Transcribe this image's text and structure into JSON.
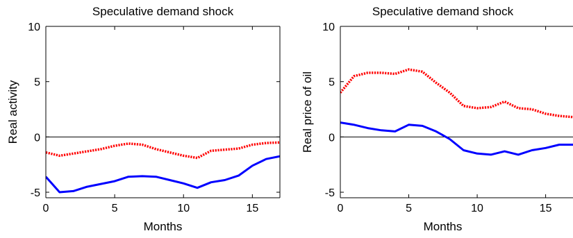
{
  "chart_data": [
    {
      "type": "line",
      "title": "Speculative demand shock",
      "xlabel": "Months",
      "ylabel": "Real activity",
      "xlim": [
        0,
        17
      ],
      "ylim": [
        -5.5,
        10
      ],
      "xticks": [
        0,
        5,
        10,
        15
      ],
      "yticks": [
        -5,
        0,
        5,
        10
      ],
      "zero_line": true,
      "series": [
        {
          "style": "solid",
          "color": "#0000ff",
          "x": [
            0,
            1,
            2,
            3,
            4,
            5,
            6,
            7,
            8,
            9,
            10,
            11,
            12,
            13,
            14,
            15,
            16,
            17
          ],
          "y": [
            -3.6,
            -5.0,
            -4.9,
            -4.5,
            -4.25,
            -4.0,
            -3.6,
            -3.55,
            -3.6,
            -3.9,
            -4.2,
            -4.6,
            -4.1,
            -3.9,
            -3.5,
            -2.6,
            -2.0,
            -1.75
          ]
        },
        {
          "style": "dotted",
          "color": "#ff0000",
          "x": [
            0,
            1,
            2,
            3,
            4,
            5,
            6,
            7,
            8,
            9,
            10,
            11,
            12,
            13,
            14,
            15,
            16,
            17
          ],
          "y": [
            -1.4,
            -1.7,
            -1.5,
            -1.3,
            -1.1,
            -0.8,
            -0.6,
            -0.7,
            -1.1,
            -1.4,
            -1.7,
            -1.9,
            -1.25,
            -1.15,
            -1.05,
            -0.7,
            -0.55,
            -0.5
          ]
        }
      ]
    },
    {
      "type": "line",
      "title": "Speculative demand shock",
      "xlabel": "Months",
      "ylabel": "Real price of oil",
      "xlim": [
        0,
        17
      ],
      "ylim": [
        -5.5,
        10
      ],
      "xticks": [
        0,
        5,
        10,
        15
      ],
      "yticks": [
        -5,
        0,
        5,
        10
      ],
      "zero_line": true,
      "series": [
        {
          "style": "solid",
          "color": "#0000ff",
          "x": [
            0,
            1,
            2,
            3,
            4,
            5,
            6,
            7,
            8,
            9,
            10,
            11,
            12,
            13,
            14,
            15,
            16,
            17
          ],
          "y": [
            1.3,
            1.1,
            0.8,
            0.6,
            0.5,
            1.1,
            1.0,
            0.5,
            -0.2,
            -1.2,
            -1.5,
            -1.6,
            -1.3,
            -1.6,
            -1.2,
            -1.0,
            -0.7,
            -0.7
          ]
        },
        {
          "style": "dotted",
          "color": "#ff0000",
          "x": [
            0,
            1,
            2,
            3,
            4,
            5,
            6,
            7,
            8,
            9,
            10,
            11,
            12,
            13,
            14,
            15,
            16,
            17
          ],
          "y": [
            4.0,
            5.5,
            5.8,
            5.8,
            5.7,
            6.1,
            5.9,
            4.9,
            4.0,
            2.8,
            2.6,
            2.7,
            3.2,
            2.6,
            2.5,
            2.1,
            1.9,
            1.8
          ]
        }
      ]
    }
  ]
}
